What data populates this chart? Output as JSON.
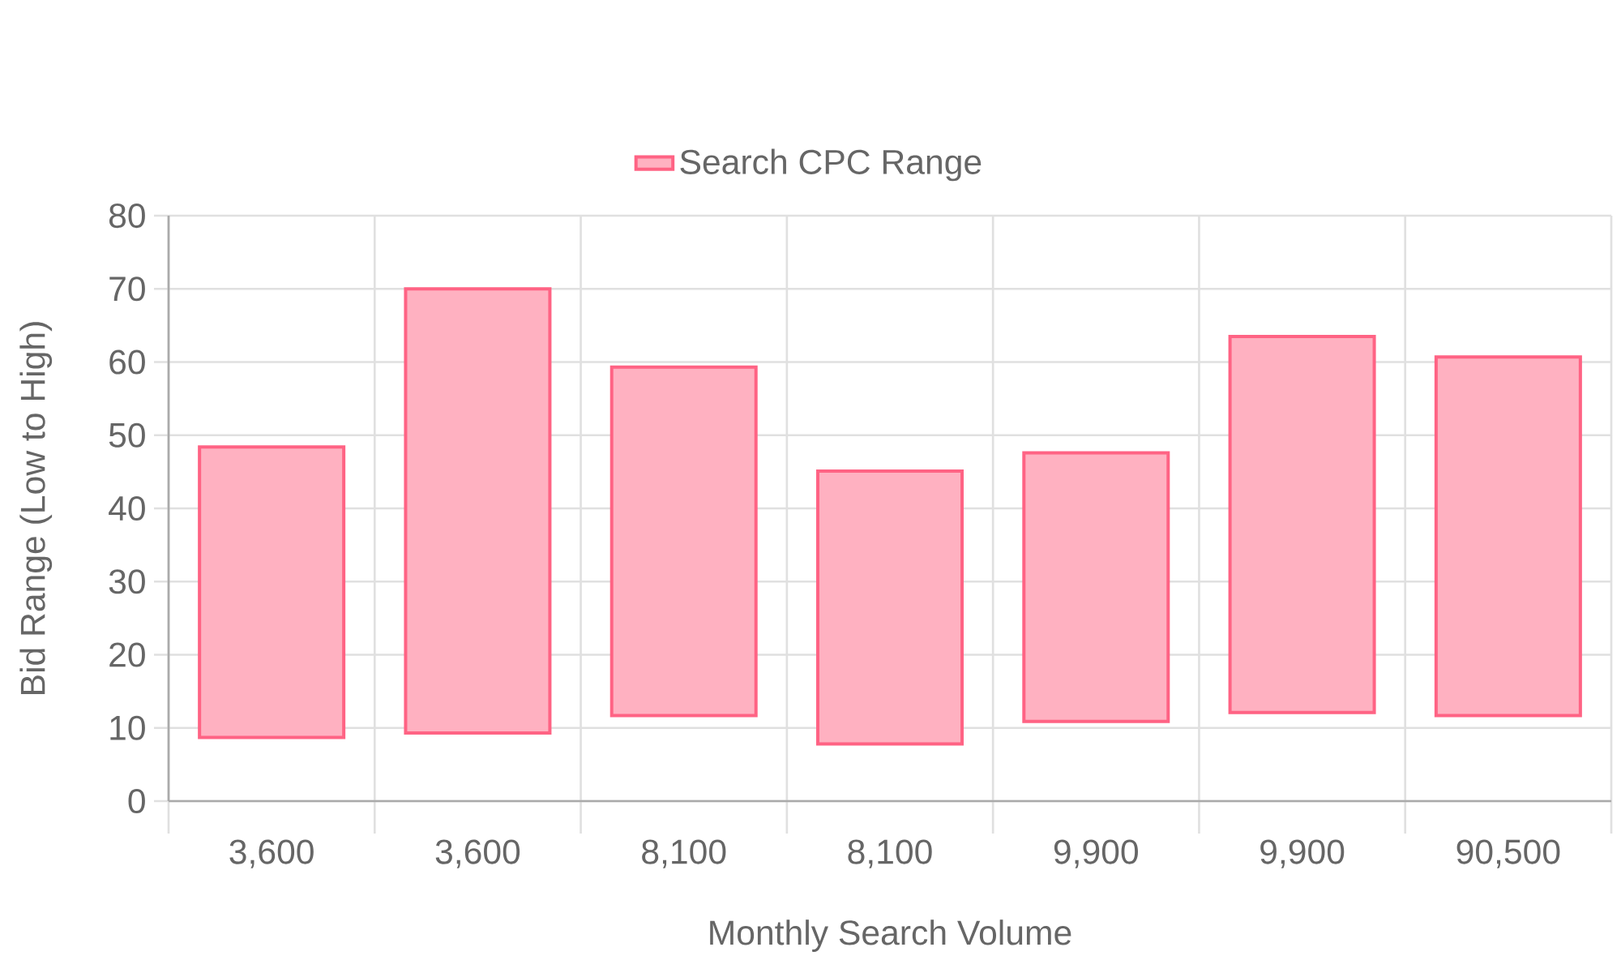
{
  "chart_data": {
    "type": "bar",
    "xlabel": "Monthly Search Volume",
    "ylabel": "Bid Range (Low to High)",
    "categories": [
      "3,600",
      "3,600",
      "8,100",
      "8,100",
      "9,900",
      "9,900",
      "90,500"
    ],
    "series": [
      {
        "name": "Search CPC Range",
        "color": "#ff6384",
        "base": [
          8.7,
          9.3,
          11.7,
          7.8,
          10.9,
          12.1,
          11.7
        ],
        "values": [
          39.7,
          60.7,
          47.6,
          37.3,
          36.7,
          51.4,
          49.0
        ]
      }
    ],
    "ylim": [
      0,
      80
    ],
    "yticks": [
      0,
      10,
      20,
      30,
      40,
      50,
      60,
      70,
      80
    ],
    "grid": true,
    "legend": "top"
  }
}
